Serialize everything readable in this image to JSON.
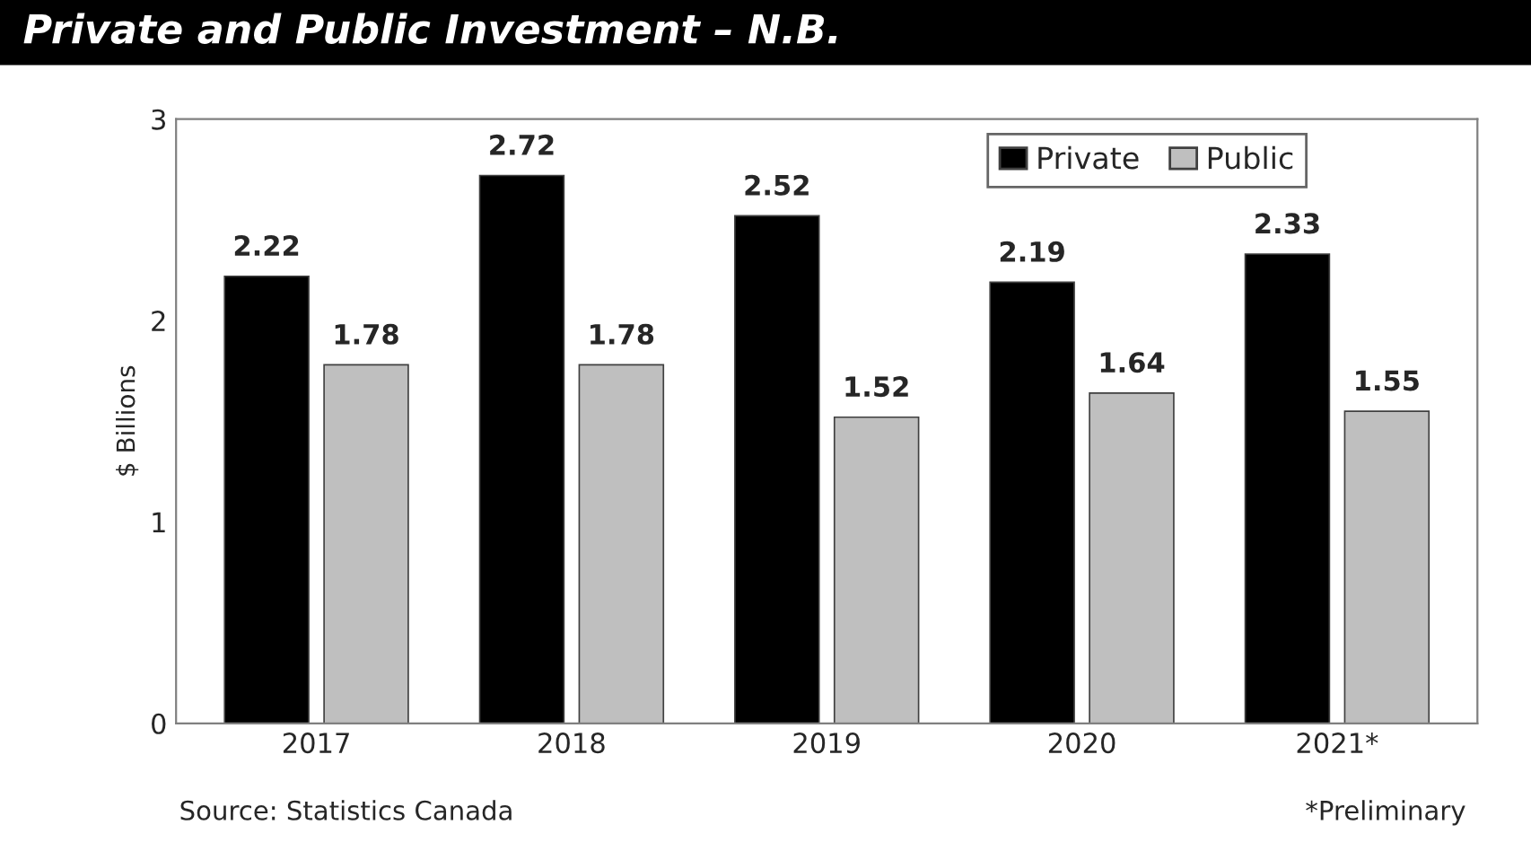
{
  "chart_data": {
    "type": "bar",
    "title": "Private and Public Investment – N.B.",
    "ylabel": "$ Billions",
    "categories": [
      "2017",
      "2018",
      "2019",
      "2020",
      "2021*"
    ],
    "series": [
      {
        "name": "Private",
        "color": "#000000",
        "values": [
          2.22,
          2.72,
          2.52,
          2.19,
          2.33
        ]
      },
      {
        "name": "Public",
        "color": "#bfbfbf",
        "values": [
          1.78,
          1.78,
          1.52,
          1.64,
          1.55
        ]
      }
    ],
    "ylim": [
      0,
      3
    ],
    "yticks": [
      0,
      1,
      2,
      3
    ],
    "grid": false,
    "legend": "top right",
    "data_labels": true,
    "annotations": [
      "Source: Statistics Canada",
      "*Preliminary"
    ]
  }
}
